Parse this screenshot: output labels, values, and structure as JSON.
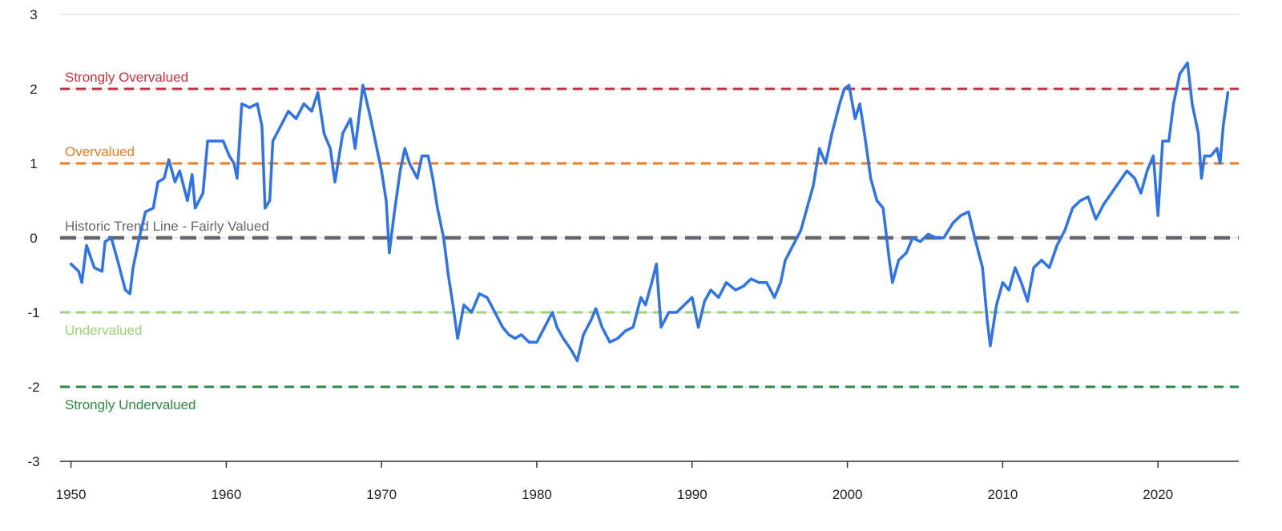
{
  "chart_data": {
    "type": "line",
    "x": [
      1950.0,
      1950.5,
      1950.7,
      1951.0,
      1951.5,
      1952.0,
      1952.2,
      1952.6,
      1953.0,
      1953.5,
      1953.8,
      1954.0,
      1954.4,
      1954.8,
      1955.3,
      1955.6,
      1956.0,
      1956.3,
      1956.7,
      1957.0,
      1957.5,
      1957.8,
      1958.0,
      1958.5,
      1958.8,
      1959.3,
      1959.8,
      1960.2,
      1960.5,
      1960.7,
      1961.0,
      1961.5,
      1962.0,
      1962.3,
      1962.5,
      1962.8,
      1963.0,
      1963.5,
      1964.0,
      1964.5,
      1965.0,
      1965.5,
      1965.9,
      1966.3,
      1966.7,
      1967.0,
      1967.5,
      1968.0,
      1968.3,
      1968.8,
      1969.3,
      1969.7,
      1970.0,
      1970.3,
      1970.5,
      1970.8,
      1971.2,
      1971.5,
      1971.8,
      1972.3,
      1972.6,
      1973.0,
      1973.3,
      1973.6,
      1974.0,
      1974.3,
      1974.6,
      1974.9,
      1975.3,
      1975.8,
      1976.3,
      1976.8,
      1977.3,
      1977.8,
      1978.2,
      1978.6,
      1979.0,
      1979.5,
      1980.0,
      1980.5,
      1981.0,
      1981.3,
      1981.7,
      1982.2,
      1982.6,
      1983.0,
      1983.5,
      1983.8,
      1984.2,
      1984.7,
      1985.2,
      1985.7,
      1986.2,
      1986.7,
      1987.0,
      1987.4,
      1987.7,
      1988.0,
      1988.5,
      1989.0,
      1989.5,
      1990.0,
      1990.4,
      1990.8,
      1991.2,
      1991.7,
      1992.2,
      1992.8,
      1993.3,
      1993.8,
      1994.3,
      1994.8,
      1995.3,
      1995.7,
      1996.0,
      1996.5,
      1997.0,
      1997.4,
      1997.8,
      1998.2,
      1998.6,
      1999.0,
      1999.5,
      1999.8,
      2000.1,
      2000.5,
      2000.8,
      2001.1,
      2001.5,
      2001.9,
      2002.3,
      2002.7,
      2002.9,
      2003.3,
      2003.8,
      2004.2,
      2004.7,
      2005.2,
      2005.7,
      2006.2,
      2006.8,
      2007.3,
      2007.8,
      2008.2,
      2008.7,
      2009.0,
      2009.2,
      2009.6,
      2010.0,
      2010.4,
      2010.8,
      2011.2,
      2011.6,
      2012.0,
      2012.5,
      2013.0,
      2013.5,
      2014.0,
      2014.5,
      2015.0,
      2015.5,
      2016.0,
      2016.5,
      2017.0,
      2017.5,
      2018.0,
      2018.5,
      2018.9,
      2019.3,
      2019.7,
      2020.0,
      2020.3,
      2020.7,
      2021.0,
      2021.4,
      2021.9,
      2022.2,
      2022.6,
      2022.8,
      2023.0,
      2023.4,
      2023.8,
      2024.0,
      2024.2,
      2024.5
    ],
    "series": [
      {
        "color": "#2f73e8",
        "values": [
          -0.35,
          -0.45,
          -0.6,
          -0.1,
          -0.4,
          -0.45,
          -0.05,
          0.0,
          -0.3,
          -0.7,
          -0.75,
          -0.4,
          0.0,
          0.35,
          0.4,
          0.75,
          0.8,
          1.05,
          0.75,
          0.9,
          0.5,
          0.85,
          0.4,
          0.6,
          1.3,
          1.3,
          1.3,
          1.1,
          1.0,
          0.8,
          1.8,
          1.75,
          1.8,
          1.5,
          0.4,
          0.5,
          1.3,
          1.5,
          1.7,
          1.6,
          1.8,
          1.7,
          1.95,
          1.4,
          1.2,
          0.75,
          1.4,
          1.6,
          1.2,
          2.05,
          1.6,
          1.2,
          0.9,
          0.5,
          -0.2,
          0.3,
          0.9,
          1.2,
          1.0,
          0.8,
          1.1,
          1.1,
          0.8,
          0.4,
          0.0,
          -0.5,
          -0.9,
          -1.35,
          -0.9,
          -1.0,
          -0.75,
          -0.8,
          -1.0,
          -1.2,
          -1.3,
          -1.35,
          -1.3,
          -1.4,
          -1.4,
          -1.2,
          -1.0,
          -1.2,
          -1.35,
          -1.5,
          -1.65,
          -1.3,
          -1.1,
          -0.95,
          -1.2,
          -1.4,
          -1.35,
          -1.25,
          -1.2,
          -0.8,
          -0.9,
          -0.6,
          -0.35,
          -1.2,
          -1.0,
          -1.0,
          -0.9,
          -0.8,
          -1.2,
          -0.85,
          -0.7,
          -0.8,
          -0.6,
          -0.7,
          -0.65,
          -0.55,
          -0.6,
          -0.6,
          -0.8,
          -0.6,
          -0.3,
          -0.1,
          0.1,
          0.4,
          0.7,
          1.2,
          1.0,
          1.4,
          1.8,
          2.0,
          2.05,
          1.6,
          1.8,
          1.4,
          0.8,
          0.5,
          0.4,
          -0.3,
          -0.6,
          -0.3,
          -0.2,
          0.0,
          -0.05,
          0.05,
          0.0,
          0.0,
          0.2,
          0.3,
          0.35,
          0.0,
          -0.4,
          -1.1,
          -1.45,
          -0.9,
          -0.6,
          -0.7,
          -0.4,
          -0.6,
          -0.85,
          -0.4,
          -0.3,
          -0.4,
          -0.1,
          0.1,
          0.4,
          0.5,
          0.55,
          0.25,
          0.45,
          0.6,
          0.75,
          0.9,
          0.8,
          0.6,
          0.9,
          1.1,
          0.3,
          1.3,
          1.3,
          1.8,
          2.2,
          2.35,
          1.8,
          1.4,
          0.8,
          1.1,
          1.1,
          1.2,
          1.0,
          1.5,
          1.95
        ]
      }
    ],
    "reference_lines": [
      {
        "label": "Strongly Overvalued",
        "value": 2,
        "color": "#d0303a"
      },
      {
        "label": "Overvalued",
        "value": 1,
        "color": "#f07a1e"
      },
      {
        "label": "Historic Trend Line - Fairly Valued",
        "value": 0,
        "color": "#62666d"
      },
      {
        "label": "Undervalued",
        "value": -1,
        "color": "#98d672"
      },
      {
        "label": "Strongly Undervalued",
        "value": -2,
        "color": "#2a8a45"
      }
    ],
    "xlim": [
      1949.3,
      2025.2
    ],
    "xticks": [
      1950,
      1960,
      1970,
      1980,
      1990,
      2000,
      2010,
      2020
    ],
    "ylim": [
      -3,
      3
    ],
    "yticks": [
      -3,
      -2,
      -1,
      0,
      1,
      2,
      3
    ],
    "grid": true
  }
}
